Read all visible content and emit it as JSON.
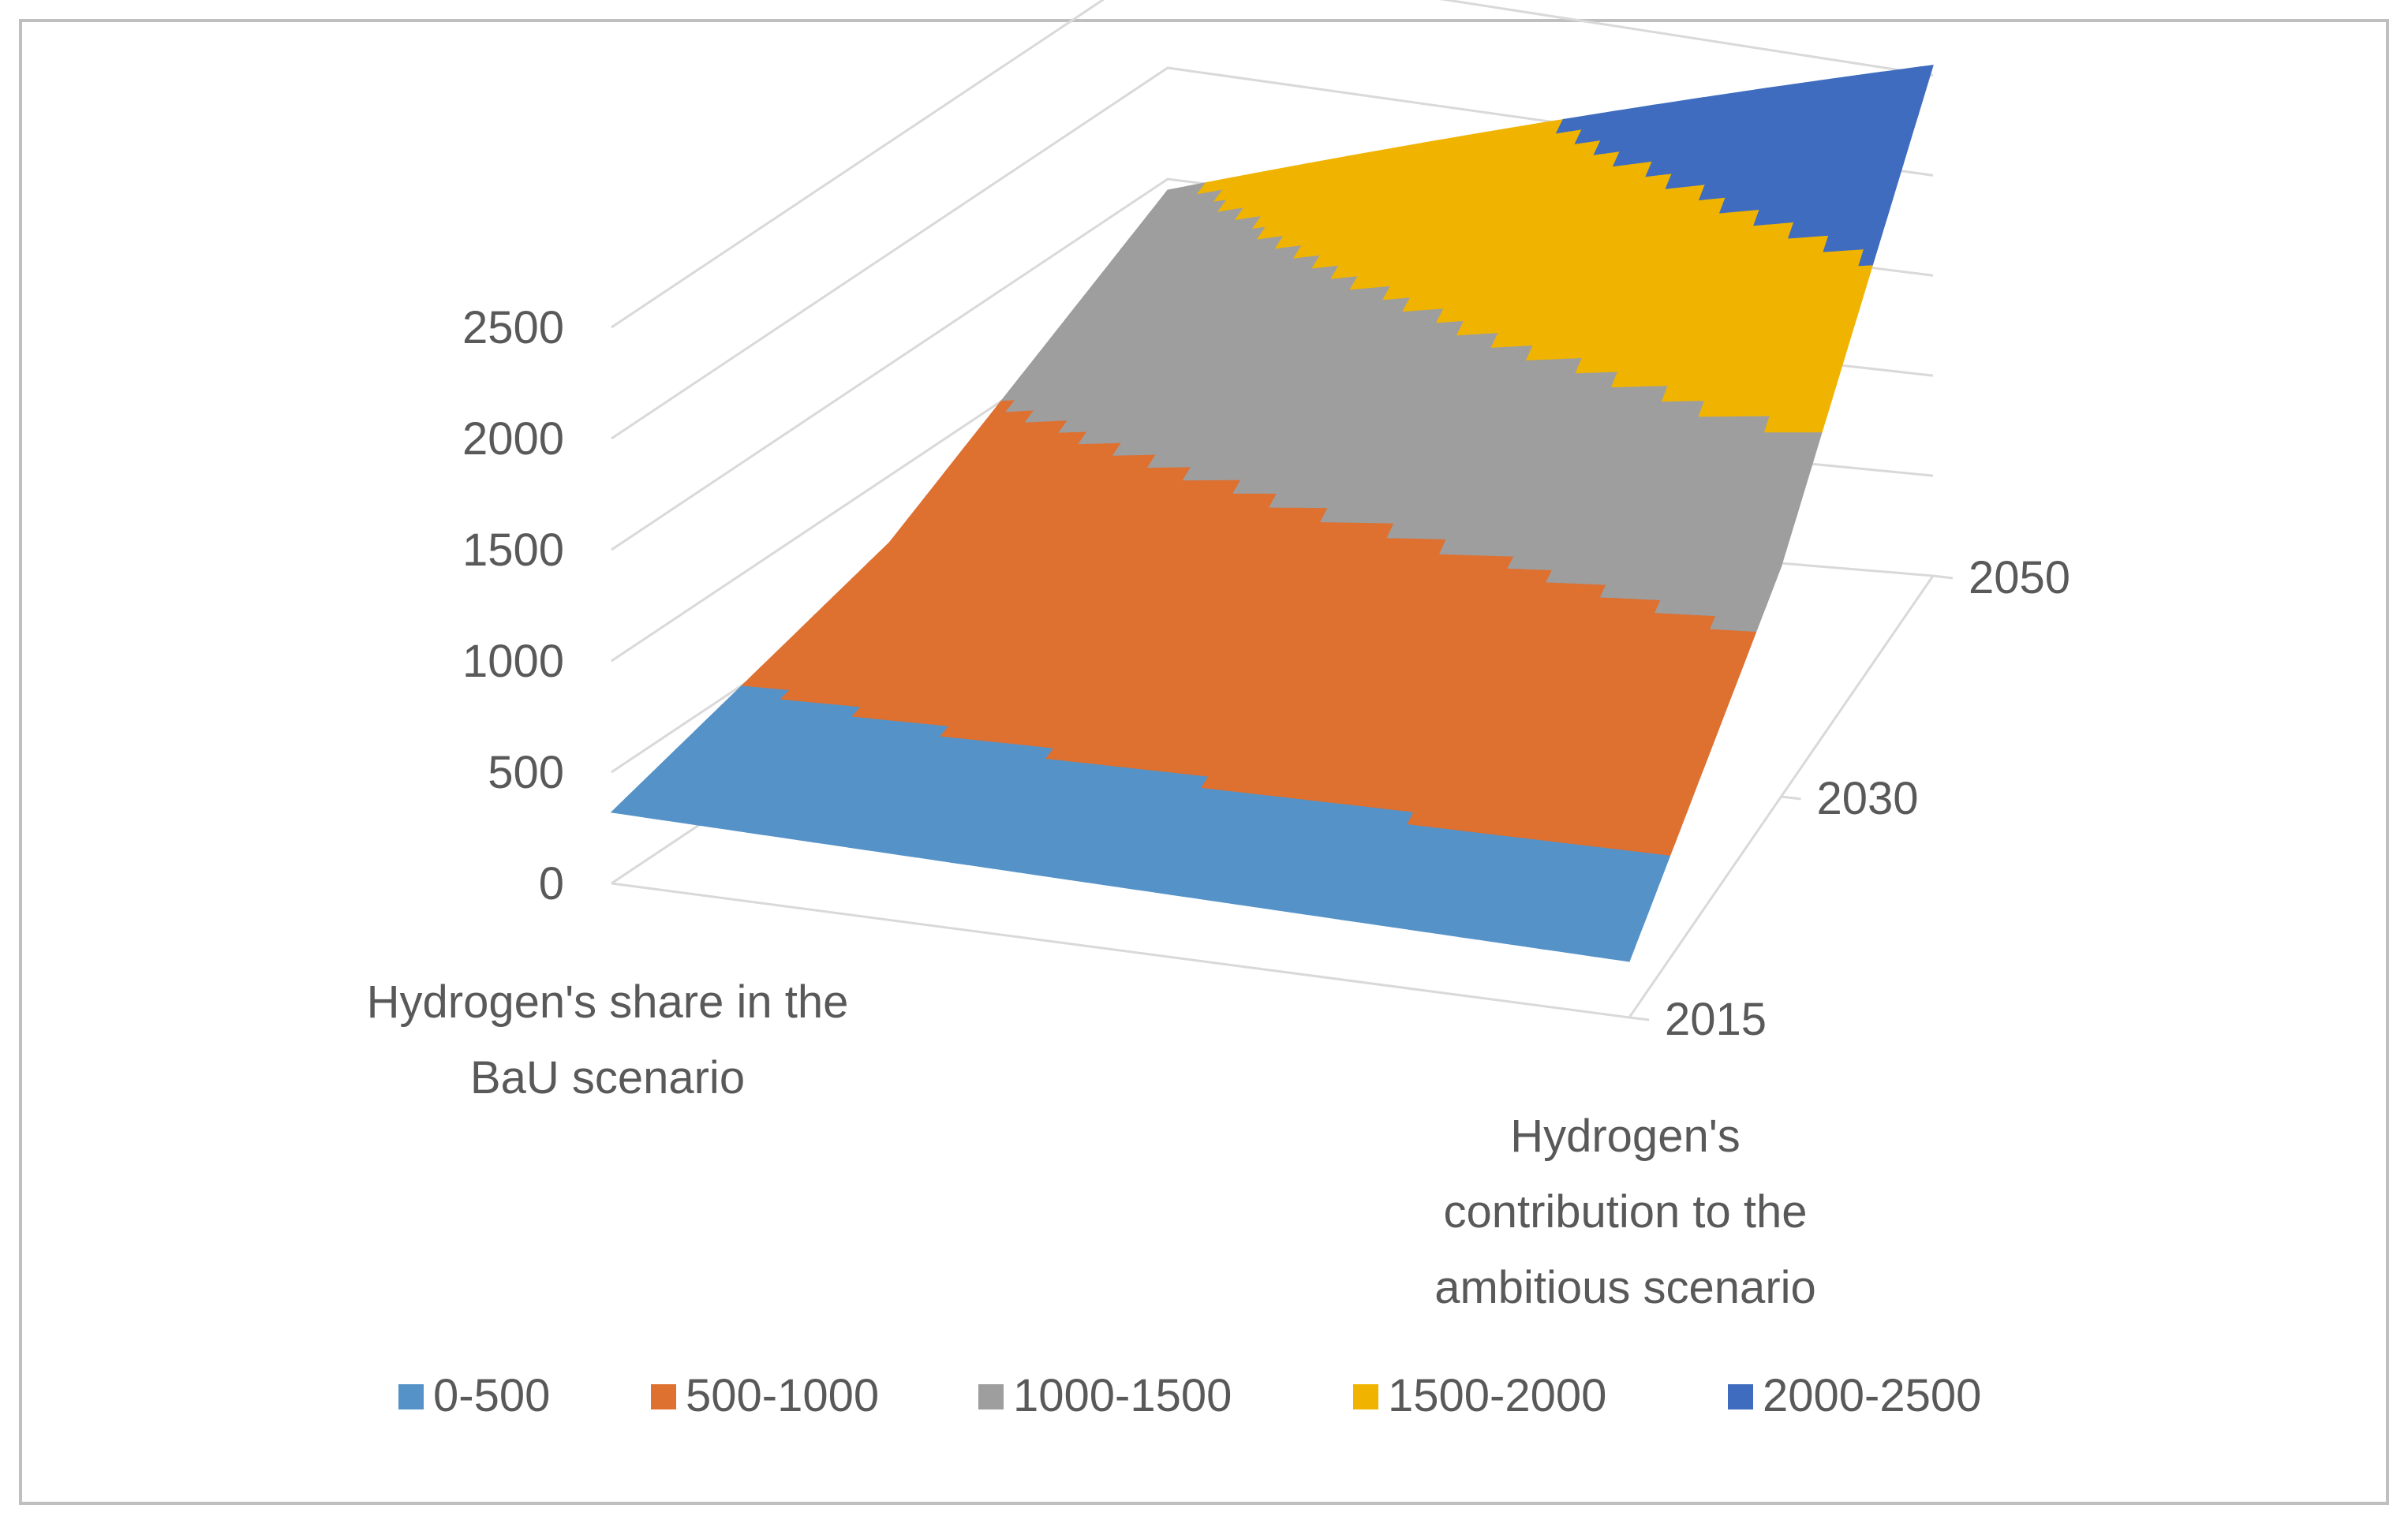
{
  "chart_data": {
    "type": "surface",
    "title": "",
    "x_categories": [
      "Hydrogen's share in the BaU scenario",
      "Hydrogen's contribution to the ambitious scenario"
    ],
    "depth_categories": [
      "2015",
      "2030",
      "2050"
    ],
    "series": [
      {
        "name": "2015",
        "values": [
          320,
          280
        ]
      },
      {
        "name": "2030",
        "values": [
          700,
          1150
        ]
      },
      {
        "name": "2050",
        "values": [
          1450,
          2550
        ]
      }
    ],
    "z_axis": {
      "min": 0,
      "max": 2500,
      "step": 500,
      "ticks": [
        "0",
        "500",
        "1000",
        "1500",
        "2000",
        "2500"
      ]
    },
    "bands": [
      {
        "label": "0-500",
        "min": 0,
        "max": 500,
        "color": "#5592C8"
      },
      {
        "label": "500-1000",
        "min": 500,
        "max": 1000,
        "color": "#DE7030"
      },
      {
        "label": "1000-1500",
        "min": 1000,
        "max": 1500,
        "color": "#9E9E9E"
      },
      {
        "label": "1500-2000",
        "min": 1500,
        "max": 2000,
        "color": "#F0B400"
      },
      {
        "label": "2000-2500",
        "min": 2000,
        "max": 2500,
        "color": "#3F6CBF"
      }
    ],
    "labels": {
      "x_left_line1": "Hydrogen's share in the",
      "x_left_line2": "BaU scenario",
      "x_right_line1": "Hydrogen's",
      "x_right_line2": "contribution to the",
      "x_right_line3": "ambitious scenario"
    },
    "legend_position": "bottom"
  }
}
